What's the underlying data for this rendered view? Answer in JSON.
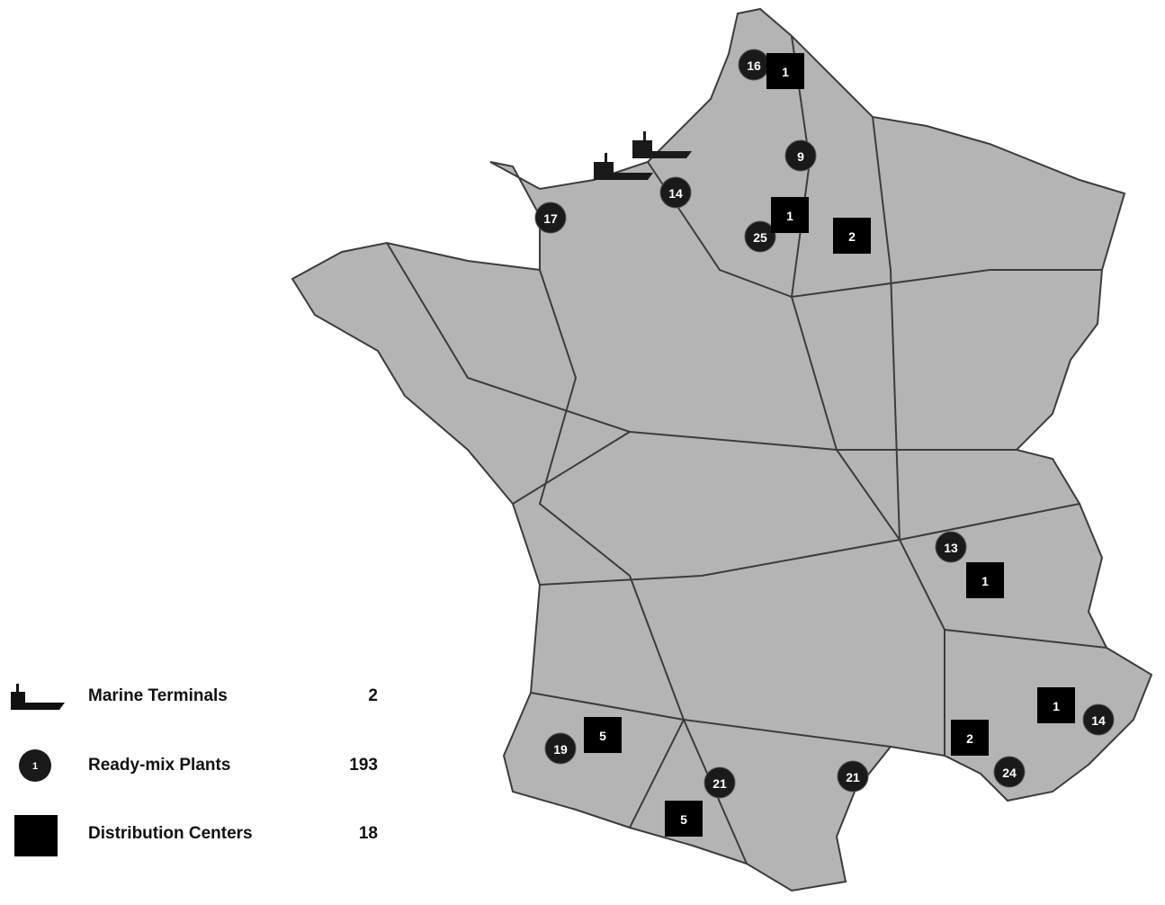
{
  "colors": {
    "land": "#b4b4b4",
    "border": "#3c3c3c",
    "marker": "#1a1a1a"
  },
  "legend": [
    {
      "icon": "ship-icon",
      "label": "Marine Terminals",
      "count": "2"
    },
    {
      "icon": "circle-icon",
      "sample": "1",
      "label": "Ready-mix Plants",
      "count": "193"
    },
    {
      "icon": "square-icon",
      "label": "Distribution Centers",
      "count": "18"
    }
  ],
  "markers": {
    "ready_mix_plants": [
      "16",
      "9",
      "14",
      "17",
      "25",
      "13",
      "19",
      "21",
      "21",
      "14",
      "24"
    ],
    "distribution_centers": [
      "1",
      "1",
      "2",
      "1",
      "5",
      "5",
      "2",
      "1"
    ],
    "marine_terminals": 2
  }
}
